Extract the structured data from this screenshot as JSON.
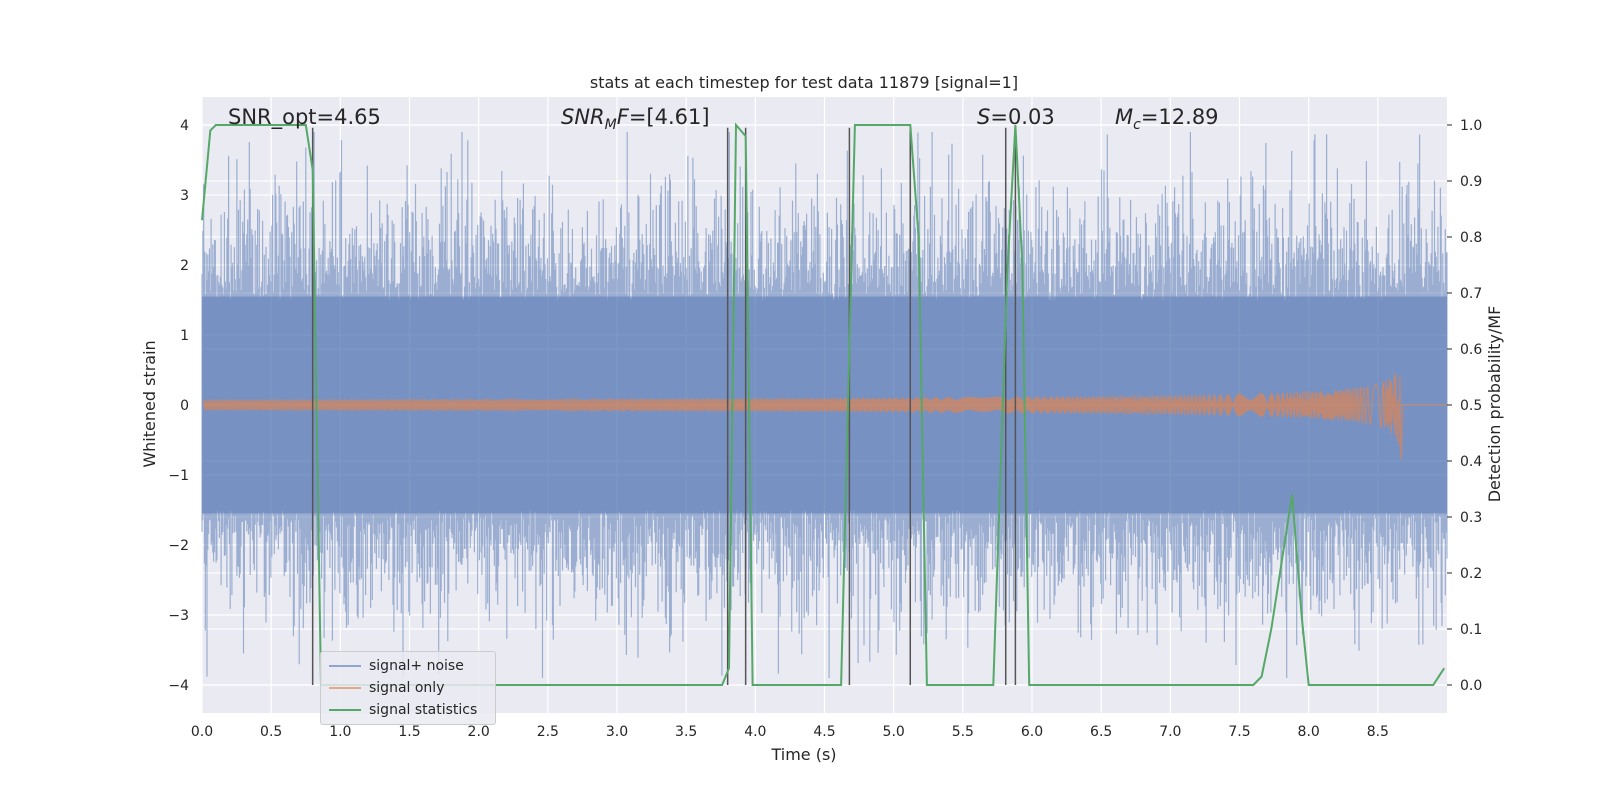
{
  "chart_data": {
    "type": "line",
    "title": "stats at each timestep for test data 11879 [signal=1]",
    "xlabel": "Time (s)",
    "ylabel_left": "Whitened strain",
    "ylabel_right": "Detection probability/MF",
    "xlim": [
      0.0,
      9.0
    ],
    "ylim_left": [
      -4.4,
      4.4
    ],
    "ylim_right": [
      -0.05,
      1.05
    ],
    "xticks": [
      "0.0",
      "0.5",
      "1.0",
      "1.5",
      "2.0",
      "2.5",
      "3.0",
      "3.5",
      "4.0",
      "4.5",
      "5.0",
      "5.5",
      "6.0",
      "6.5",
      "7.0",
      "7.5",
      "8.0",
      "8.5"
    ],
    "yticks_left": [
      "4",
      "3",
      "2",
      "1",
      "0",
      "−1",
      "−2",
      "−3",
      "−4"
    ],
    "yticks_right": [
      "1.0",
      "0.9",
      "0.8",
      "0.7",
      "0.6",
      "0.5",
      "0.4",
      "0.3",
      "0.2",
      "0.1",
      "0.0"
    ],
    "grid": true,
    "legend_position": "lower-left",
    "annotations": [
      {
        "label": "SNR_opt=4.65"
      },
      {
        "label": "SNR_MF=[4.61]"
      },
      {
        "label": "S=0.03"
      },
      {
        "label": "M_c=12.89"
      }
    ],
    "series": [
      {
        "name": "signal+ noise",
        "color": "#4c72b0",
        "style": "noise band, approx ±1.6 typical, peaks to ±3.9"
      },
      {
        "name": "signal only",
        "color": "#dd8452",
        "style": "chirp",
        "peak_time": 8.67,
        "peak_amplitude": 0.95
      },
      {
        "name": "signal statistics",
        "color": "#55a868",
        "x": [
          0.0,
          0.06,
          0.1,
          0.5,
          0.75,
          0.8,
          0.86,
          1.0,
          2.0,
          3.0,
          3.76,
          3.81,
          3.86,
          3.93,
          3.98,
          4.1,
          4.62,
          4.67,
          4.72,
          5.12,
          5.18,
          5.24,
          5.5,
          5.72,
          5.82,
          5.88,
          5.93,
          5.98,
          6.1,
          7.0,
          7.6,
          7.66,
          7.73,
          7.88,
          7.95,
          8.0,
          8.2,
          8.5,
          8.9,
          8.98
        ],
        "y": [
          0.83,
          0.99,
          1.0,
          1.0,
          1.0,
          0.92,
          0.0,
          0.0,
          0.0,
          0.0,
          0.0,
          0.03,
          1.0,
          0.98,
          0.0,
          0.0,
          0.0,
          0.5,
          1.0,
          1.0,
          0.8,
          0.0,
          0.0,
          0.0,
          0.73,
          1.0,
          0.75,
          0.0,
          0.0,
          0.0,
          0.0,
          0.015,
          0.1,
          0.34,
          0.12,
          0.0,
          0.0,
          0.0,
          0.0,
          0.03
        ]
      }
    ],
    "vertical_lines_x": [
      0.8,
      3.8,
      3.93,
      4.68,
      5.12,
      5.81,
      5.88
    ]
  },
  "legend": {
    "item1": "signal+ noise",
    "item2": "signal only",
    "item3": "signal statistics"
  },
  "colors": {
    "plot_bg": "#eaeaf2",
    "grid": "#ffffff",
    "noise": "#4c72b0",
    "signal": "#dd8452",
    "stats": "#55a868",
    "vline": "#555555"
  }
}
